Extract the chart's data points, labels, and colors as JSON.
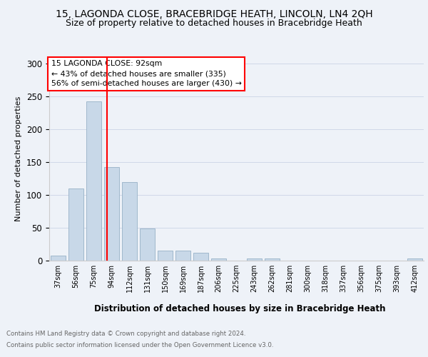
{
  "title1": "15, LAGONDA CLOSE, BRACEBRIDGE HEATH, LINCOLN, LN4 2QH",
  "title2": "Size of property relative to detached houses in Bracebridge Heath",
  "xlabel": "Distribution of detached houses by size in Bracebridge Heath",
  "ylabel": "Number of detached properties",
  "footer1": "Contains HM Land Registry data © Crown copyright and database right 2024.",
  "footer2": "Contains public sector information licensed under the Open Government Licence v3.0.",
  "annotation_line1": "15 LAGONDA CLOSE: 92sqm",
  "annotation_line2": "← 43% of detached houses are smaller (335)",
  "annotation_line3": "56% of semi-detached houses are larger (430) →",
  "bin_labels": [
    "37sqm",
    "56sqm",
    "75sqm",
    "94sqm",
    "112sqm",
    "131sqm",
    "150sqm",
    "169sqm",
    "187sqm",
    "206sqm",
    "225sqm",
    "243sqm",
    "262sqm",
    "281sqm",
    "300sqm",
    "318sqm",
    "337sqm",
    "356sqm",
    "375sqm",
    "393sqm",
    "412sqm"
  ],
  "bar_values": [
    8,
    110,
    243,
    143,
    120,
    49,
    15,
    15,
    12,
    3,
    0,
    3,
    3,
    0,
    0,
    0,
    0,
    0,
    0,
    0,
    3
  ],
  "bar_color": "#c8d8e8",
  "bar_edge_color": "#a0b8cc",
  "red_line_x": 2.75,
  "ylim": [
    0,
    310
  ],
  "yticks": [
    0,
    50,
    100,
    150,
    200,
    250,
    300
  ],
  "background_color": "#eef2f8",
  "annotation_box_color": "white",
  "annotation_box_edge": "red",
  "grid_color": "#d0d8e8",
  "title1_fontsize": 10,
  "title2_fontsize": 9,
  "bar_width": 0.85
}
